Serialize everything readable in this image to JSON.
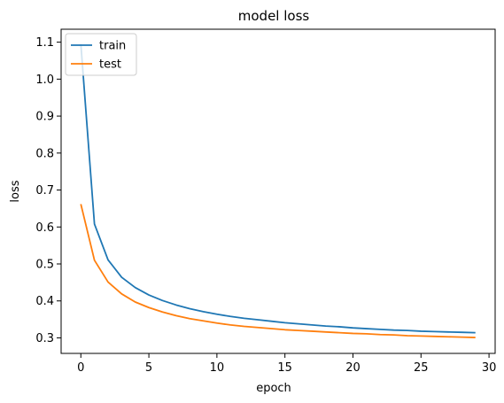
{
  "chart_data": {
    "type": "line",
    "title": "model loss",
    "xlabel": "epoch",
    "ylabel": "loss",
    "xlim": [
      -1.45,
      30.45
    ],
    "ylim": [
      0.258,
      1.135
    ],
    "xticks": [
      0,
      5,
      10,
      15,
      20,
      25,
      30
    ],
    "yticks": [
      0.3,
      0.4,
      0.5,
      0.6,
      0.7,
      0.8,
      0.9,
      1.0,
      1.1
    ],
    "xtick_labels": [
      "0",
      "5",
      "10",
      "15",
      "20",
      "25",
      "30"
    ],
    "ytick_labels": [
      "0.3",
      "0.4",
      "0.5",
      "0.6",
      "0.7",
      "0.8",
      "0.9",
      "1.0",
      "1.1"
    ],
    "grid": false,
    "legend_position": "top-left",
    "series": [
      {
        "name": "train",
        "color": "#1f77b4",
        "x": [
          0,
          1,
          2,
          3,
          4,
          5,
          6,
          7,
          8,
          9,
          10,
          11,
          12,
          13,
          14,
          15,
          16,
          17,
          18,
          19,
          20,
          21,
          22,
          23,
          24,
          25,
          26,
          27,
          28,
          29
        ],
        "values": [
          1.095,
          0.608,
          0.511,
          0.464,
          0.436,
          0.416,
          0.401,
          0.389,
          0.379,
          0.371,
          0.364,
          0.358,
          0.353,
          0.349,
          0.345,
          0.341,
          0.338,
          0.335,
          0.332,
          0.33,
          0.327,
          0.325,
          0.323,
          0.321,
          0.32,
          0.318,
          0.317,
          0.316,
          0.315,
          0.314
        ]
      },
      {
        "name": "test",
        "color": "#ff7f0e",
        "x": [
          0,
          1,
          2,
          3,
          4,
          5,
          6,
          7,
          8,
          9,
          10,
          11,
          12,
          13,
          14,
          15,
          16,
          17,
          18,
          19,
          20,
          21,
          22,
          23,
          24,
          25,
          26,
          27,
          28,
          29
        ],
        "values": [
          0.662,
          0.51,
          0.451,
          0.419,
          0.397,
          0.382,
          0.37,
          0.36,
          0.352,
          0.346,
          0.34,
          0.335,
          0.331,
          0.328,
          0.325,
          0.322,
          0.32,
          0.318,
          0.316,
          0.314,
          0.312,
          0.311,
          0.309,
          0.308,
          0.306,
          0.305,
          0.304,
          0.303,
          0.302,
          0.301
        ]
      }
    ]
  }
}
